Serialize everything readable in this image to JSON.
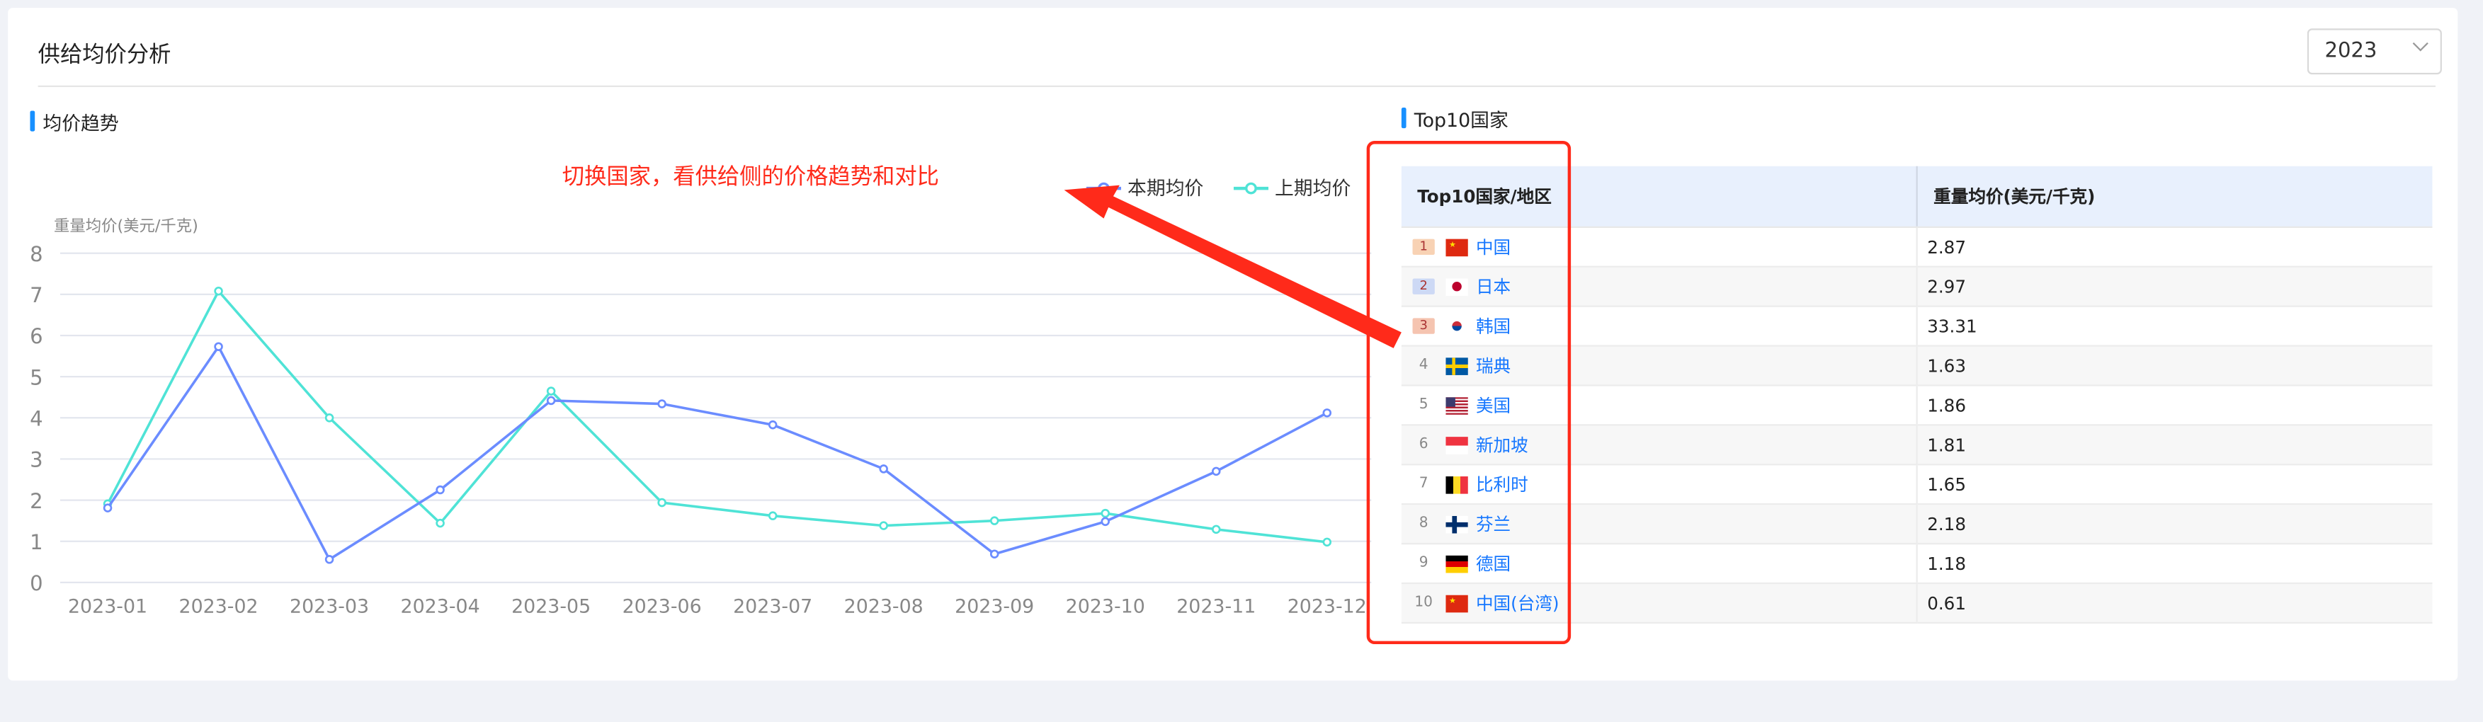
{
  "page_title": "供给均价分析",
  "year_select": {
    "value": "2023"
  },
  "chart_section_title": "均价趋势",
  "table_section_title": "Top10国家",
  "annotation_text": "切换国家，看供给侧的价格趋势和对比",
  "colors": {
    "current": "#6b8cff",
    "previous": "#4fe3d6",
    "accent": "#1890ff",
    "annotation": "#ff2a1a",
    "link": "#1677ff"
  },
  "chart_data": {
    "type": "line",
    "ylabel": "重量均价(美元/千克)",
    "ylim": [
      0,
      8
    ],
    "yticks": [
      "0",
      "1",
      "2",
      "3",
      "4",
      "5",
      "6",
      "7",
      "8"
    ],
    "grid": true,
    "legend_position": "top-right",
    "categories": [
      "2023-01",
      "2023-02",
      "2023-03",
      "2023-04",
      "2023-05",
      "2023-06",
      "2023-07",
      "2023-08",
      "2023-09",
      "2023-10",
      "2023-11",
      "2023-12"
    ],
    "series": [
      {
        "name": "本期均价",
        "values": [
          1.81,
          5.73,
          0.56,
          2.25,
          4.42,
          4.34,
          3.83,
          2.76,
          0.69,
          1.48,
          2.7,
          4.12
        ]
      },
      {
        "name": "上期均价",
        "values": [
          1.91,
          7.08,
          4.0,
          1.44,
          4.65,
          1.94,
          1.62,
          1.38,
          1.5,
          1.68,
          1.29,
          0.98
        ]
      }
    ]
  },
  "table": {
    "headers": [
      "Top10国家/地区",
      "重量均价(美元/千克)"
    ],
    "rows": [
      {
        "rank": "1",
        "country": "中国",
        "value": "2.87",
        "flag": "cn"
      },
      {
        "rank": "2",
        "country": "日本",
        "value": "2.97",
        "flag": "jp"
      },
      {
        "rank": "3",
        "country": "韩国",
        "value": "33.31",
        "flag": "kr"
      },
      {
        "rank": "4",
        "country": "瑞典",
        "value": "1.63",
        "flag": "se"
      },
      {
        "rank": "5",
        "country": "美国",
        "value": "1.86",
        "flag": "us"
      },
      {
        "rank": "6",
        "country": "新加坡",
        "value": "1.81",
        "flag": "sg"
      },
      {
        "rank": "7",
        "country": "比利时",
        "value": "1.65",
        "flag": "be"
      },
      {
        "rank": "8",
        "country": "芬兰",
        "value": "2.18",
        "flag": "fi"
      },
      {
        "rank": "9",
        "country": "德国",
        "value": "1.18",
        "flag": "de"
      },
      {
        "rank": "10",
        "country": "中国(台湾)",
        "value": "0.61",
        "flag": "cn"
      }
    ]
  }
}
